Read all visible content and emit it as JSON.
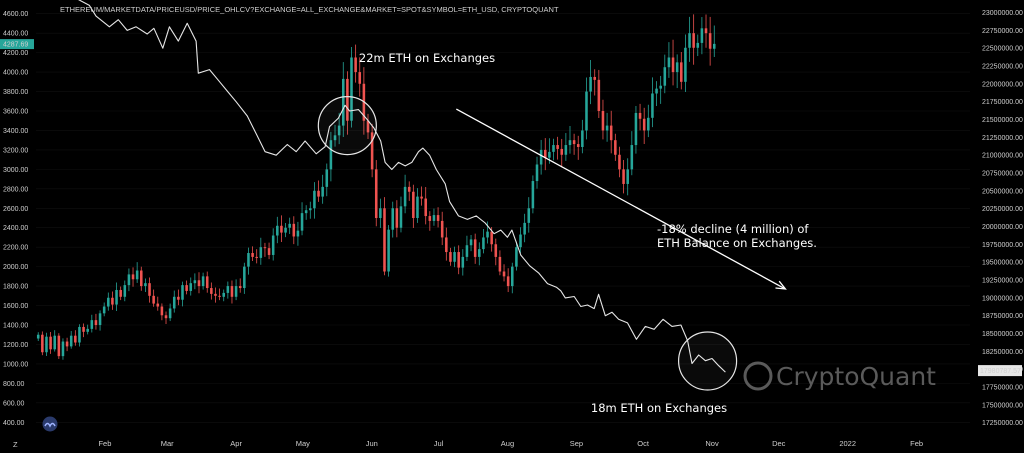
{
  "header": {
    "source_label": "ETHEREUM/MARKETDATA/PRICEUSD/PRICE_OHLCV?EXCHANGE=ALL_EXCHANGE&MARKET=SPOT&SYMBOL=ETH_USD, CRYPTOQUANT"
  },
  "watermark": "CryptoQuant",
  "corner_label": "Z",
  "annotations": {
    "top": "22m ETH on Exchanges",
    "decline_line1": "-18% decline (4 million) of",
    "decline_line2": "ETH Balance on Exchanges.",
    "bottom": "18m ETH on Exchanges"
  },
  "chart_data": {
    "type": "candlestick + line",
    "x_tick_labels": [
      "Feb",
      "Mar",
      "Apr",
      "May",
      "Jun",
      "Jul",
      "Aug",
      "Sep",
      "Oct",
      "Nov",
      "Dec",
      "2022",
      "Feb"
    ],
    "x_tick_days": [
      31,
      59,
      90,
      120,
      151,
      181,
      212,
      243,
      273,
      304,
      334,
      365,
      396
    ],
    "x_range_days": [
      0,
      420
    ],
    "left_axis": {
      "ticks": [
        400,
        600,
        800,
        1000,
        1200,
        1400,
        1600,
        1800,
        2000,
        2200,
        2400,
        2600,
        2800,
        3000,
        3200,
        3400,
        3600,
        3800,
        4000,
        4200,
        4400,
        4600
      ],
      "tick_labels": [
        "400.00",
        "600.00",
        "800.00",
        "1000.00",
        "1200.00",
        "1400.00",
        "1600.00",
        "1800.00",
        "2000.00",
        "2200.00",
        "2400.00",
        "2600.00",
        "2800.00",
        "3000.00",
        "3200.00",
        "3400.00",
        "3600.00",
        "3800.00",
        "4000.00",
        "4200.00",
        "4400.00",
        "4600.00"
      ],
      "range": [
        300,
        4700
      ],
      "current_value_label": "4287.69",
      "current_value": 4287.69
    },
    "right_axis": {
      "ticks": [
        17250000,
        17500000,
        17750000,
        18000000,
        18250000,
        18500000,
        18750000,
        19000000,
        19250000,
        19500000,
        19750000,
        20000000,
        20250000,
        20500000,
        20750000,
        21000000,
        21250000,
        21500000,
        21750000,
        22000000,
        22250000,
        22500000,
        22750000,
        23000000
      ],
      "tick_labels": [
        "17250000.00",
        "17500000.00",
        "17750000.00",
        "18000000.00",
        "18250000.00",
        "18500000.00",
        "18750000.00",
        "19000000.00",
        "19250000.00",
        "19500000.00",
        "19750000.00",
        "20000000.00",
        "20250000.00",
        "20500000.00",
        "20750000.00",
        "21000000.00",
        "21250000.00",
        "21500000.00",
        "21750000.00",
        "22000000.00",
        "22250000.00",
        "22500000.00",
        "22750000.00",
        "23000000.00"
      ],
      "range": [
        17120000,
        23120000
      ],
      "current_value_label": "17980787.57",
      "current_value": 17980787.57
    },
    "series": [
      {
        "name": "ETH price (USD)",
        "style": "candlestick",
        "axis": "left",
        "up_color": "#26a69a",
        "down_color": "#ef5350",
        "closes": [
          1300,
          1120,
          1280,
          1150,
          1290,
          1080,
          1230,
          1180,
          1290,
          1220,
          1380,
          1330,
          1360,
          1450,
          1400,
          1520,
          1590,
          1680,
          1610,
          1760,
          1690,
          1810,
          1920,
          1870,
          1960,
          1800,
          1830,
          1700,
          1620,
          1590,
          1500,
          1470,
          1570,
          1690,
          1660,
          1810,
          1750,
          1830,
          1860,
          1800,
          1900,
          1780,
          1720,
          1700,
          1690,
          1730,
          1800,
          1690,
          1800,
          1780,
          2000,
          2140,
          2100,
          2090,
          2200,
          2190,
          2120,
          2320,
          2420,
          2350,
          2400,
          2440,
          2310,
          2370,
          2550,
          2580,
          2600,
          2780,
          2720,
          2820,
          3000,
          3300,
          3350,
          3450,
          3930,
          3500,
          4150,
          4000,
          3880,
          3500,
          3380,
          3000,
          2500,
          2600,
          1950,
          2380,
          2600,
          2400,
          2620,
          2820,
          2770,
          2500,
          2720,
          2700,
          2520,
          2470,
          2530,
          2470,
          2300,
          2150,
          2050,
          2150,
          1990,
          2100,
          2220,
          2280,
          2100,
          2180,
          2300,
          2360,
          2230,
          2100,
          1950,
          1900,
          1800,
          2000,
          2200,
          2330,
          2450,
          2600,
          2880,
          3050,
          3200,
          3120,
          3180,
          3250,
          3210,
          3150,
          3250,
          3300,
          3260,
          3230,
          3400,
          3800,
          3950,
          3920,
          3600,
          3400,
          3450,
          3300,
          3150,
          3000,
          2850,
          3000,
          3250,
          3580,
          3520,
          3400,
          3530,
          3780,
          3830,
          3860,
          4050,
          4150,
          4000,
          4100,
          3900,
          4250,
          4400,
          4250,
          4300,
          4450,
          4400,
          4240,
          4290
        ]
      },
      {
        "name": "ETH Balance on Exchanges",
        "style": "line",
        "axis": "right",
        "color": "#e6e6e6",
        "points": [
          [
            18,
            23200000
          ],
          [
            24,
            23100000
          ],
          [
            27,
            22950000
          ],
          [
            33,
            22800000
          ],
          [
            37,
            22900000
          ],
          [
            41,
            22750000
          ],
          [
            45,
            22800000
          ],
          [
            50,
            22700000
          ],
          [
            53,
            22780000
          ],
          [
            57,
            22500000
          ],
          [
            60,
            22800000
          ],
          [
            64,
            22600000
          ],
          [
            68,
            22850000
          ],
          [
            72,
            22600000
          ],
          [
            73,
            22150000
          ],
          [
            78,
            22200000
          ],
          [
            82,
            22050000
          ],
          [
            86,
            21900000
          ],
          [
            90,
            21750000
          ],
          [
            95,
            21550000
          ],
          [
            99,
            21300000
          ],
          [
            103,
            21050000
          ],
          [
            108,
            21000000
          ],
          [
            113,
            21150000
          ],
          [
            117,
            21050000
          ],
          [
            121,
            21200000
          ],
          [
            126,
            21020000
          ],
          [
            130,
            21120000
          ],
          [
            132,
            21400000
          ],
          [
            136,
            21520000
          ],
          [
            139,
            21700000
          ],
          [
            141,
            21620000
          ],
          [
            145,
            21640000
          ],
          [
            149,
            21500000
          ],
          [
            152,
            21380000
          ],
          [
            155,
            21200000
          ],
          [
            157,
            20900000
          ],
          [
            160,
            20800000
          ],
          [
            163,
            20900000
          ],
          [
            166,
            20850000
          ],
          [
            169,
            20900000
          ],
          [
            172,
            21050000
          ],
          [
            174,
            21100000
          ],
          [
            177,
            21000000
          ],
          [
            180,
            20800000
          ],
          [
            184,
            20600000
          ],
          [
            186,
            20350000
          ],
          [
            190,
            20150000
          ],
          [
            194,
            20100000
          ],
          [
            198,
            20150000
          ],
          [
            202,
            20050000
          ],
          [
            206,
            19900000
          ],
          [
            209,
            19950000
          ],
          [
            212,
            19850000
          ],
          [
            214,
            19950000
          ],
          [
            218,
            19600000
          ],
          [
            222,
            19450000
          ],
          [
            226,
            19350000
          ],
          [
            230,
            19200000
          ],
          [
            234,
            19150000
          ],
          [
            236,
            19100000
          ],
          [
            238,
            19000000
          ],
          [
            242,
            19020000
          ],
          [
            245,
            18880000
          ],
          [
            248,
            18900000
          ],
          [
            251,
            18850000
          ],
          [
            253,
            19050000
          ],
          [
            256,
            18750000
          ],
          [
            259,
            18800000
          ],
          [
            262,
            18700000
          ],
          [
            266,
            18650000
          ],
          [
            270,
            18420000
          ],
          [
            274,
            18600000
          ],
          [
            278,
            18560000
          ],
          [
            282,
            18700000
          ],
          [
            286,
            18600000
          ],
          [
            290,
            18620000
          ],
          [
            293,
            18400000
          ],
          [
            295,
            18080000
          ],
          [
            298,
            18200000
          ],
          [
            301,
            18120000
          ],
          [
            304,
            18150000
          ],
          [
            307,
            18050000
          ],
          [
            310,
            17960000
          ]
        ]
      }
    ],
    "annotation_circles": [
      {
        "day": 140,
        "value_left": 3450,
        "label": "top"
      },
      {
        "day": 302,
        "value_left": 1030,
        "label": "bottom"
      }
    ],
    "trend_arrow": {
      "from": {
        "day": 189,
        "value_left": 3620
      },
      "to": {
        "day": 337,
        "value_left": 1770
      }
    }
  },
  "colors": {
    "background": "#000000",
    "price_tag": "#26a69a",
    "balance_tag": "#e6e6e6",
    "text": "#ffffff",
    "axis_text": "#cfcfcf",
    "watermark": "#5a5a5a"
  }
}
